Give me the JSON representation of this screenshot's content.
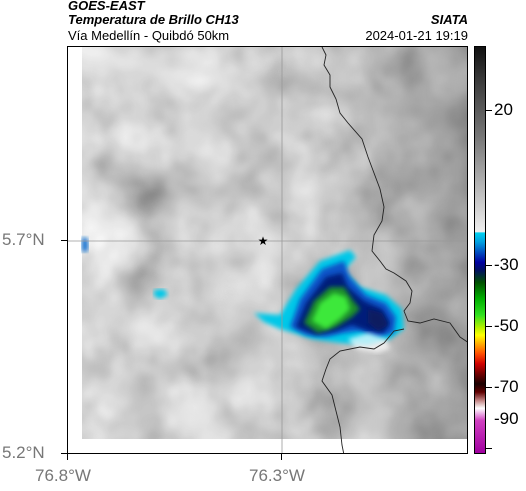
{
  "header": {
    "satellite": "GOES-EAST",
    "product": "Temperatura de Brillo CH13",
    "agency": "SIATA",
    "route": "Vía Medellín - Quibdó 50km",
    "timestamp": "2024-01-21 19:19"
  },
  "axes": {
    "y_ticks": [
      "5.7°N",
      "5.2°N"
    ],
    "x_ticks": [
      "76.8°W",
      "76.3°W"
    ]
  },
  "colorbar": {
    "ticks": [
      "20",
      "-30",
      "-50",
      "-70",
      "-90"
    ]
  },
  "colors": {
    "cloud_cold_green": "#22dd22",
    "cloud_cyan": "#00c8e8",
    "cloud_dark_blue": "#001a7a",
    "border_line": "#222222"
  },
  "icons": {
    "location_marker": "star-icon"
  }
}
